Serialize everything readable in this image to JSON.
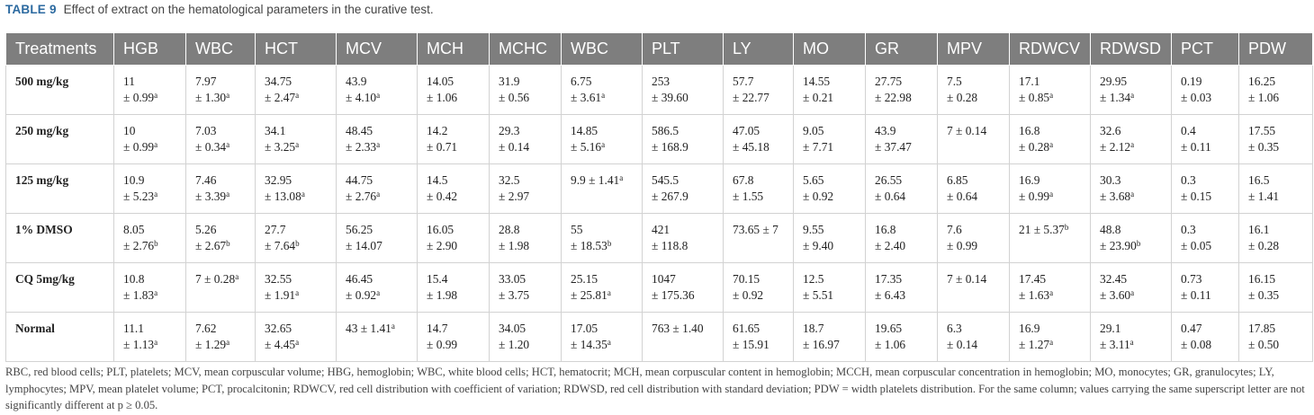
{
  "caption": {
    "label": "TABLE 9",
    "title": "Effect of extract on the hematological parameters in the curative test."
  },
  "table": {
    "headers": [
      "Treatments",
      "HGB",
      "WBC",
      "HCT",
      "MCV",
      "MCH",
      "MCHC",
      "WBC",
      "PLT",
      "LY",
      "MO",
      "GR",
      "MPV",
      "RDWCV",
      "RDWSD",
      "PCT",
      "PDW"
    ],
    "rows": [
      {
        "treatment": "500 mg/kg",
        "cells": [
          {
            "v": "11",
            "sd": "± 0.99",
            "sup": "a"
          },
          {
            "v": "7.97",
            "sd": "± 1.30",
            "sup": "a"
          },
          {
            "v": "34.75",
            "sd": "± 2.47",
            "sup": "a"
          },
          {
            "v": "43.9",
            "sd": "± 4.10",
            "sup": "a"
          },
          {
            "v": "14.05",
            "sd": "± 1.06",
            "sup": ""
          },
          {
            "v": "31.9",
            "sd": "± 0.56",
            "sup": ""
          },
          {
            "v": "6.75",
            "sd": "± 3.61",
            "sup": "a"
          },
          {
            "v": "253",
            "sd": "± 39.60",
            "sup": ""
          },
          {
            "v": "57.7",
            "sd": "± 22.77",
            "sup": ""
          },
          {
            "v": "14.55",
            "sd": "± 0.21",
            "sup": ""
          },
          {
            "v": "27.75",
            "sd": "± 22.98",
            "sup": ""
          },
          {
            "v": "7.5",
            "sd": "± 0.28",
            "sup": ""
          },
          {
            "v": "17.1",
            "sd": "± 0.85",
            "sup": "a"
          },
          {
            "v": "29.95",
            "sd": "± 1.34",
            "sup": "a"
          },
          {
            "v": "0.19",
            "sd": "± 0.03",
            "sup": ""
          },
          {
            "v": "16.25",
            "sd": "± 1.06",
            "sup": ""
          }
        ]
      },
      {
        "treatment": "250 mg/kg",
        "cells": [
          {
            "v": "10",
            "sd": "± 0.99",
            "sup": "a"
          },
          {
            "v": "7.03",
            "sd": "± 0.34",
            "sup": "a"
          },
          {
            "v": "34.1",
            "sd": "± 3.25",
            "sup": "a"
          },
          {
            "v": "48.45",
            "sd": "± 2.33",
            "sup": "a"
          },
          {
            "v": "14.2",
            "sd": "± 0.71",
            "sup": ""
          },
          {
            "v": "29.3",
            "sd": "± 0.14",
            "sup": ""
          },
          {
            "v": "14.85",
            "sd": "± 5.16",
            "sup": "a"
          },
          {
            "v": "586.5",
            "sd": "± 168.9",
            "sup": ""
          },
          {
            "v": "47.05",
            "sd": "± 45.18",
            "sup": ""
          },
          {
            "v": "9.05",
            "sd": "± 7.71",
            "sup": ""
          },
          {
            "v": "43.9",
            "sd": "± 37.47",
            "sup": ""
          },
          {
            "v": "7 ± 0.14",
            "sd": "",
            "sup": ""
          },
          {
            "v": "16.8",
            "sd": "± 0.28",
            "sup": "a"
          },
          {
            "v": "32.6",
            "sd": "± 2.12",
            "sup": "a"
          },
          {
            "v": "0.4",
            "sd": "± 0.11",
            "sup": ""
          },
          {
            "v": "17.55",
            "sd": "± 0.35",
            "sup": ""
          }
        ]
      },
      {
        "treatment": "125 mg/kg",
        "cells": [
          {
            "v": "10.9",
            "sd": "± 5.23",
            "sup": "a"
          },
          {
            "v": "7.46",
            "sd": "± 3.39",
            "sup": "a"
          },
          {
            "v": "32.95",
            "sd": "± 13.08",
            "sup": "a"
          },
          {
            "v": "44.75",
            "sd": "± 2.76",
            "sup": "a"
          },
          {
            "v": "14.5",
            "sd": "± 0.42",
            "sup": ""
          },
          {
            "v": "32.5",
            "sd": "± 2.97",
            "sup": ""
          },
          {
            "v": "9.9 ± 1.41",
            "sd": "",
            "sup": "a"
          },
          {
            "v": "545.5",
            "sd": "± 267.9",
            "sup": ""
          },
          {
            "v": "67.8",
            "sd": "± 1.55",
            "sup": ""
          },
          {
            "v": "5.65",
            "sd": "± 0.92",
            "sup": ""
          },
          {
            "v": "26.55",
            "sd": "± 0.64",
            "sup": ""
          },
          {
            "v": "6.85",
            "sd": "± 0.64",
            "sup": ""
          },
          {
            "v": "16.9",
            "sd": "± 0.99",
            "sup": "a"
          },
          {
            "v": "30.3",
            "sd": "± 3.68",
            "sup": "a"
          },
          {
            "v": "0.3",
            "sd": "± 0.15",
            "sup": ""
          },
          {
            "v": "16.5",
            "sd": "± 1.41",
            "sup": ""
          }
        ]
      },
      {
        "treatment": "1% DMSO",
        "cells": [
          {
            "v": "8.05",
            "sd": "± 2.76",
            "sup": "b"
          },
          {
            "v": "5.26",
            "sd": "± 2.67",
            "sup": "b"
          },
          {
            "v": "27.7",
            "sd": "± 7.64",
            "sup": "b"
          },
          {
            "v": "56.25",
            "sd": "± 14.07",
            "sup": ""
          },
          {
            "v": "16.05",
            "sd": "± 2.90",
            "sup": ""
          },
          {
            "v": "28.8",
            "sd": "± 1.98",
            "sup": ""
          },
          {
            "v": "55",
            "sd": "± 18.53",
            "sup": "b"
          },
          {
            "v": "421",
            "sd": "± 118.8",
            "sup": ""
          },
          {
            "v": "73.65 ± 7",
            "sd": "",
            "sup": ""
          },
          {
            "v": "9.55",
            "sd": "± 9.40",
            "sup": ""
          },
          {
            "v": "16.8",
            "sd": "± 2.40",
            "sup": ""
          },
          {
            "v": "7.6",
            "sd": "± 0.99",
            "sup": ""
          },
          {
            "v": "21 ± 5.37",
            "sd": "",
            "sup": "b"
          },
          {
            "v": "48.8",
            "sd": "± 23.90",
            "sup": "b"
          },
          {
            "v": "0.3",
            "sd": "± 0.05",
            "sup": ""
          },
          {
            "v": "16.1",
            "sd": "± 0.28",
            "sup": ""
          }
        ]
      },
      {
        "treatment": "CQ 5mg/kg",
        "cells": [
          {
            "v": "10.8",
            "sd": "± 1.83",
            "sup": "a"
          },
          {
            "v": "7 ± 0.28",
            "sd": "",
            "sup": "a"
          },
          {
            "v": "32.55",
            "sd": "± 1.91",
            "sup": "a"
          },
          {
            "v": "46.45",
            "sd": "± 0.92",
            "sup": "a"
          },
          {
            "v": "15.4",
            "sd": "± 1.98",
            "sup": ""
          },
          {
            "v": "33.05",
            "sd": "± 3.75",
            "sup": ""
          },
          {
            "v": "25.15",
            "sd": "± 25.81",
            "sup": "a"
          },
          {
            "v": "1047",
            "sd": "± 175.36",
            "sup": ""
          },
          {
            "v": "70.15",
            "sd": "± 0.92",
            "sup": ""
          },
          {
            "v": "12.5",
            "sd": "± 5.51",
            "sup": ""
          },
          {
            "v": "17.35",
            "sd": "± 6.43",
            "sup": ""
          },
          {
            "v": "7 ± 0.14",
            "sd": "",
            "sup": ""
          },
          {
            "v": "17.45",
            "sd": "± 1.63",
            "sup": "a"
          },
          {
            "v": "32.45",
            "sd": "± 3.60",
            "sup": "a"
          },
          {
            "v": "0.73",
            "sd": "± 0.11",
            "sup": ""
          },
          {
            "v": "16.15",
            "sd": "± 0.35",
            "sup": ""
          }
        ]
      },
      {
        "treatment": "Normal",
        "cells": [
          {
            "v": "11.1",
            "sd": "± 1.13",
            "sup": "a"
          },
          {
            "v": "7.62",
            "sd": "± 1.29",
            "sup": "a"
          },
          {
            "v": "32.65",
            "sd": "± 4.45",
            "sup": "a"
          },
          {
            "v": "43 ± 1.41",
            "sd": "",
            "sup": "a"
          },
          {
            "v": "14.7",
            "sd": "± 0.99",
            "sup": ""
          },
          {
            "v": "34.05",
            "sd": "± 1.20",
            "sup": ""
          },
          {
            "v": "17.05",
            "sd": "± 14.35",
            "sup": "a"
          },
          {
            "v": "763 ± 1.40",
            "sd": "",
            "sup": ""
          },
          {
            "v": "61.65",
            "sd": "± 15.91",
            "sup": ""
          },
          {
            "v": "18.7",
            "sd": "± 16.97",
            "sup": ""
          },
          {
            "v": "19.65",
            "sd": "± 1.06",
            "sup": ""
          },
          {
            "v": "6.3",
            "sd": "± 0.14",
            "sup": ""
          },
          {
            "v": "16.9",
            "sd": "± 1.27",
            "sup": "a"
          },
          {
            "v": "29.1",
            "sd": "± 3.11",
            "sup": "a"
          },
          {
            "v": "0.47",
            "sd": "± 0.08",
            "sup": ""
          },
          {
            "v": "17.85",
            "sd": "± 0.50",
            "sup": ""
          }
        ]
      }
    ]
  },
  "footnote": "RBC, red blood cells; PLT, platelets; MCV, mean corpuscular volume; HBG, hemoglobin; WBC, white blood cells; HCT, hematocrit; MCH, mean corpuscular content in hemoglobin; MCCH, mean corpuscular concentration in hemoglobin; MO, monocytes; GR, granulocytes; LY, lymphocytes; MPV, mean platelet volume; PCT, procalcitonin; RDWCV, red cell distribution with coefficient of variation; RDWSD, red cell distribution with standard deviation; PDW = width platelets distribution. For the same column; values carrying the same superscript letter are not significantly different at p ≥ 0.05."
}
